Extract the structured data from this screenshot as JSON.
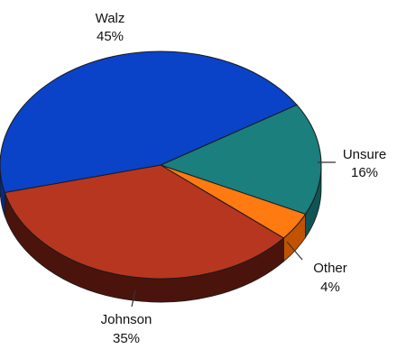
{
  "chart_data": {
    "type": "pie",
    "title": "",
    "slices": [
      {
        "label": "Unsure",
        "value": 16,
        "value_label": "16%",
        "color": "#1a7f7d",
        "side_color": "#0f5553"
      },
      {
        "label": "Other",
        "value": 4,
        "value_label": "4%",
        "color": "#ff7a10",
        "side_color": "#c25200"
      },
      {
        "label": "Johnson",
        "value": 35,
        "value_label": "35%",
        "color": "#b73620",
        "side_color": "#4a140c"
      },
      {
        "label": "Walz",
        "value": 45,
        "value_label": "45%",
        "color": "#0a43c7",
        "side_color": "#062c86"
      }
    ],
    "style": "3d"
  }
}
